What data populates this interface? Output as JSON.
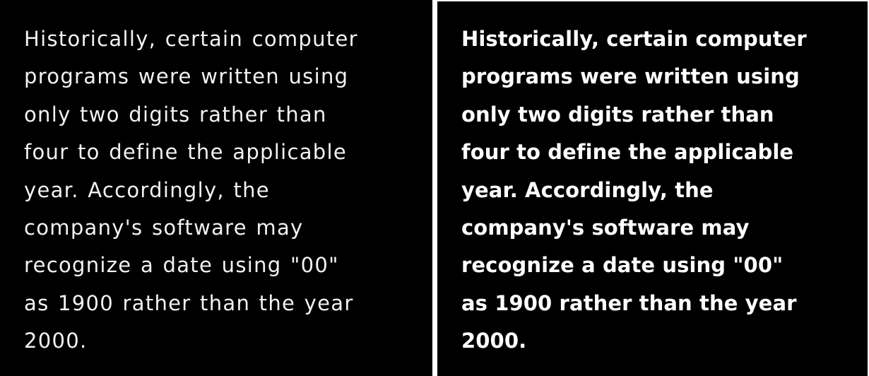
{
  "colors": {
    "background": "#000000",
    "text": "#ffffff",
    "divider": "#ffffff"
  },
  "left_panel": {
    "style": "regular",
    "lines": [
      "Historically, certain computer",
      "programs were written using",
      "only two digits rather than",
      "four to define the applicable",
      "year. Accordingly, the",
      "company's software may",
      "recognize a date using \"00\"",
      "as 1900 rather than the year",
      "2000."
    ]
  },
  "right_panel": {
    "style": "bold",
    "lines": [
      "Historically, certain computer",
      "programs were written using",
      "only two digits rather than",
      "four to define the applicable",
      "year. Accordingly, the",
      "company's software may",
      "recognize a date using \"00\"",
      "as 1900 rather than the year",
      "2000."
    ]
  }
}
